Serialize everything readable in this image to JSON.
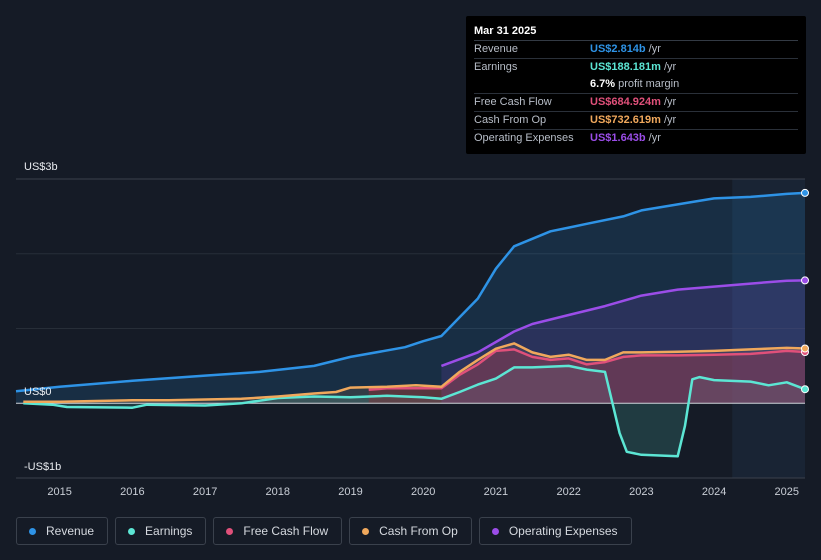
{
  "tooltip": {
    "date": "Mar 31 2025",
    "rows": [
      {
        "label": "Revenue",
        "value": "US$2.814b",
        "unit": "/yr",
        "color": "#2e93e6"
      },
      {
        "label": "Earnings",
        "value": "US$188.181m",
        "unit": "/yr",
        "color": "#5ce6d4"
      },
      {
        "label": "",
        "value": "6.7%",
        "unit": "profit margin",
        "color": "#ffffff"
      },
      {
        "label": "Free Cash Flow",
        "value": "US$684.924m",
        "unit": "/yr",
        "color": "#e0507a"
      },
      {
        "label": "Cash From Op",
        "value": "US$732.619m",
        "unit": "/yr",
        "color": "#f0a85c"
      },
      {
        "label": "Operating Expenses",
        "value": "US$1.643b",
        "unit": "/yr",
        "color": "#9b4de8"
      }
    ]
  },
  "legend": [
    {
      "label": "Revenue",
      "color": "#2e93e6"
    },
    {
      "label": "Earnings",
      "color": "#5ce6d4"
    },
    {
      "label": "Free Cash Flow",
      "color": "#e0507a"
    },
    {
      "label": "Cash From Op",
      "color": "#f0a85c"
    },
    {
      "label": "Operating Expenses",
      "color": "#9b4de8"
    }
  ],
  "chart_data": {
    "type": "line",
    "title": "",
    "units": "US$ billions",
    "y_labels": {
      "top": "US$3b",
      "zero": "US$0",
      "bottom": "-US$1b"
    },
    "ylim": [
      -1,
      3
    ],
    "xlim": [
      2014.4,
      2025.25
    ],
    "x_ticks": [
      "2015",
      "2016",
      "2017",
      "2018",
      "2019",
      "2020",
      "2021",
      "2022",
      "2023",
      "2024",
      "2025"
    ],
    "x_tick_values": [
      2015,
      2016,
      2017,
      2018,
      2019,
      2020,
      2021,
      2022,
      2023,
      2024,
      2025
    ],
    "highlight_from": 2024.25,
    "series": [
      {
        "name": "Revenue",
        "color": "#2e93e6",
        "x": [
          2014.4,
          2015,
          2016,
          2017,
          2017.75,
          2018.5,
          2019,
          2019.75,
          2020,
          2020.25,
          2020.5,
          2020.75,
          2021,
          2021.25,
          2021.5,
          2021.75,
          2022,
          2022.25,
          2022.75,
          2023,
          2023.5,
          2024,
          2024.5,
          2025,
          2025.25
        ],
        "y": [
          0.16,
          0.22,
          0.3,
          0.37,
          0.42,
          0.5,
          0.62,
          0.75,
          0.83,
          0.9,
          1.15,
          1.4,
          1.8,
          2.1,
          2.2,
          2.3,
          2.35,
          2.4,
          2.5,
          2.58,
          2.66,
          2.74,
          2.76,
          2.8,
          2.814
        ]
      },
      {
        "name": "Earnings",
        "color": "#5ce6d4",
        "x": [
          2014.5,
          2014.9,
          2015.1,
          2016,
          2016.2,
          2017,
          2017.5,
          2018,
          2018.5,
          2019,
          2019.5,
          2020,
          2020.25,
          2020.5,
          2020.75,
          2021,
          2021.25,
          2021.5,
          2022,
          2022.25,
          2022.5,
          2022.7,
          2022.8,
          2023,
          2023.5,
          2023.6,
          2023.7,
          2023.8,
          2024,
          2024.5,
          2024.75,
          2025,
          2025.25
        ],
        "y": [
          0.0,
          -0.02,
          -0.05,
          -0.06,
          -0.02,
          -0.03,
          0.0,
          0.07,
          0.09,
          0.08,
          0.1,
          0.08,
          0.06,
          0.15,
          0.25,
          0.33,
          0.48,
          0.48,
          0.5,
          0.45,
          0.42,
          -0.4,
          -0.65,
          -0.69,
          -0.71,
          -0.3,
          0.32,
          0.35,
          0.31,
          0.29,
          0.24,
          0.28,
          0.188
        ]
      },
      {
        "name": "Free Cash Flow",
        "color": "#e0507a",
        "x": [
          2019.25,
          2019.5,
          2020,
          2020.25,
          2020.5,
          2020.75,
          2021,
          2021.25,
          2021.5,
          2021.75,
          2022,
          2022.25,
          2022.5,
          2022.75,
          2023,
          2023.5,
          2024,
          2024.5,
          2025,
          2025.25
        ],
        "y": [
          0.18,
          0.2,
          0.2,
          0.2,
          0.38,
          0.52,
          0.7,
          0.72,
          0.62,
          0.58,
          0.6,
          0.52,
          0.55,
          0.62,
          0.64,
          0.64,
          0.65,
          0.66,
          0.7,
          0.685
        ]
      },
      {
        "name": "Cash From Op",
        "color": "#f0a85c",
        "x": [
          2014.5,
          2015,
          2015.5,
          2016,
          2016.5,
          2017,
          2017.5,
          2018,
          2018.5,
          2018.8,
          2019,
          2019.5,
          2019.9,
          2020.25,
          2020.5,
          2020.75,
          2021,
          2021.25,
          2021.5,
          2021.75,
          2022,
          2022.25,
          2022.5,
          2022.75,
          2023,
          2023.5,
          2024,
          2024.5,
          2025,
          2025.25
        ],
        "y": [
          0.02,
          0.02,
          0.03,
          0.04,
          0.04,
          0.05,
          0.06,
          0.09,
          0.13,
          0.15,
          0.21,
          0.22,
          0.24,
          0.22,
          0.42,
          0.58,
          0.73,
          0.8,
          0.68,
          0.62,
          0.65,
          0.58,
          0.58,
          0.68,
          0.68,
          0.69,
          0.7,
          0.72,
          0.74,
          0.733
        ]
      },
      {
        "name": "Operating Expenses",
        "color": "#9b4de8",
        "x": [
          2020.25,
          2020.75,
          2021,
          2021.25,
          2021.5,
          2022,
          2022.5,
          2023,
          2023.5,
          2024,
          2024.5,
          2025,
          2025.25
        ],
        "y": [
          0.5,
          0.68,
          0.82,
          0.96,
          1.06,
          1.18,
          1.3,
          1.44,
          1.52,
          1.56,
          1.6,
          1.64,
          1.643
        ]
      }
    ]
  }
}
